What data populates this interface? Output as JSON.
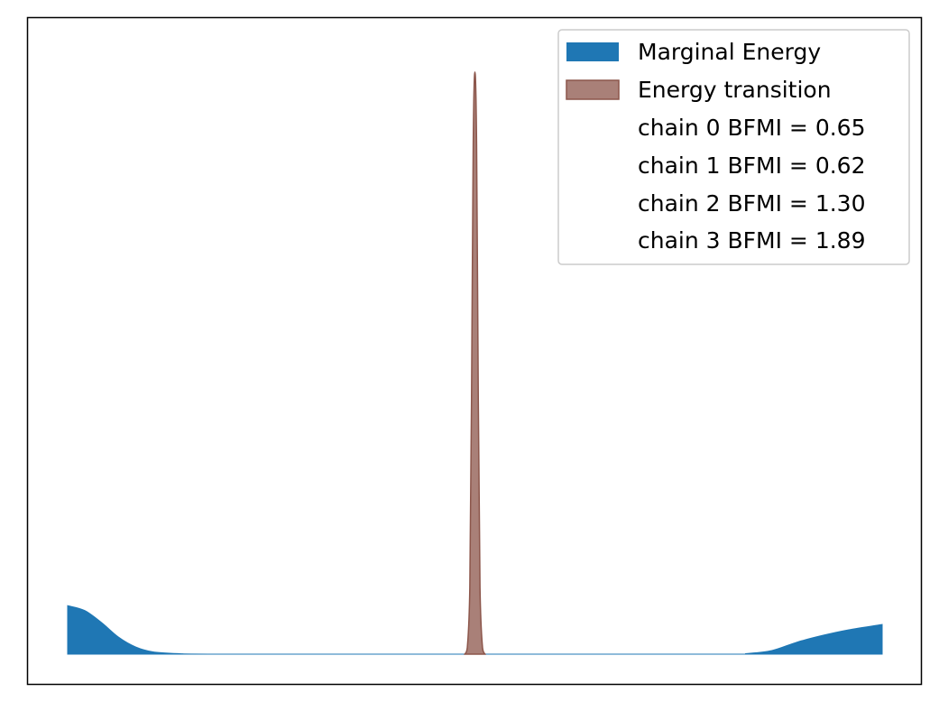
{
  "chart_data": {
    "type": "area",
    "title": "",
    "xlabel": "",
    "ylabel": "",
    "axis_ticks_visible": false,
    "grid": false,
    "legend_position": "top-right",
    "x_range": [
      -4.8,
      4.8
    ],
    "y_range": [
      0,
      1.0
    ],
    "series": [
      {
        "name": "Marginal Energy",
        "color": "#1f77b4",
        "x": [
          -4.8,
          -4.6,
          -4.4,
          -4.2,
          -4.0,
          -3.8,
          -3.5,
          -3.0,
          0.0,
          3.0,
          3.2,
          3.5,
          3.8,
          4.1,
          4.4,
          4.8
        ],
        "y": [
          0.08,
          0.072,
          0.052,
          0.028,
          0.012,
          0.004,
          0.001,
          0.0,
          0.0,
          0.0,
          0.001,
          0.006,
          0.02,
          0.031,
          0.04,
          0.049
        ]
      },
      {
        "name": "Energy transition",
        "color": "#8c564b",
        "x": [
          -0.12,
          -0.09,
          -0.06,
          -0.04,
          -0.02,
          0.0,
          0.02,
          0.04,
          0.06,
          0.09,
          0.12
        ],
        "y": [
          0.0,
          0.01,
          0.11,
          0.42,
          0.84,
          0.96,
          0.84,
          0.42,
          0.11,
          0.01,
          0.0
        ]
      }
    ],
    "legend": [
      {
        "label": "Marginal Energy",
        "swatch": "#1f77b4"
      },
      {
        "label": "Energy transition",
        "swatch": "#8c564b"
      },
      {
        "label": "chain  0 BFMI = 0.65",
        "swatch": null
      },
      {
        "label": "chain  1 BFMI = 0.62",
        "swatch": null
      },
      {
        "label": "chain  2 BFMI = 1.30",
        "swatch": null
      },
      {
        "label": "chain  3 BFMI = 1.89",
        "swatch": null
      }
    ]
  }
}
